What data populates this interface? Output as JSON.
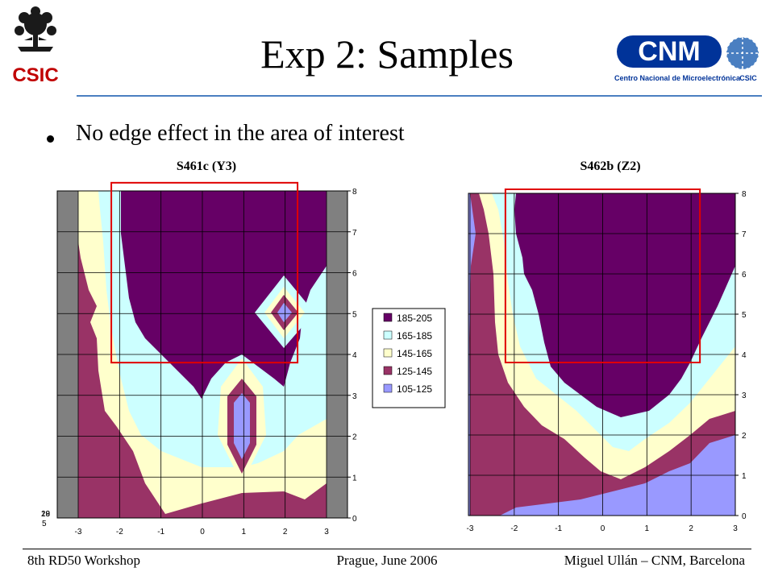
{
  "header": {
    "title": "Exp 2: Samples",
    "left_logo_text": "CSIC",
    "right_logo_text": "CNM",
    "right_logo_subtitle": "Centro Nacional de Microelectrónica",
    "right_logo_tag": "CSIC",
    "logo_red": "#c00000",
    "logo_blue": "#003399"
  },
  "bullets": [
    "No edge effect in the area of interest"
  ],
  "footer": {
    "left": "8th RD50 Workshop",
    "center": "Prague, June 2006",
    "right": "Miguel Ullán – CNM, Barcelona"
  },
  "legend": {
    "items": [
      {
        "label": "185-205",
        "color": "#660066"
      },
      {
        "label": "165-185",
        "color": "#ccffff"
      },
      {
        "label": "145-165",
        "color": "#ffffcc"
      },
      {
        "label": "125-145",
        "color": "#993366"
      },
      {
        "label": "105-125",
        "color": "#9999ff"
      }
    ]
  },
  "chart_data": [
    {
      "type": "heatmap",
      "title": "S461c (Y3)",
      "x_ticks": [
        "-3",
        "-2",
        "-1",
        "0",
        "1",
        "2",
        "3"
      ],
      "y_ticks": [
        "0",
        "1",
        "2",
        "3",
        "4",
        "5",
        "6",
        "7",
        "8"
      ],
      "xlim": [
        -3,
        3
      ],
      "ylim": [
        0,
        8
      ],
      "grid": true,
      "stray_left_labels": [
        "19",
        "28",
        "5"
      ],
      "side_bands": "gray",
      "region_of_interest": {
        "x": [
          -2.2,
          2.3
        ],
        "y": [
          3.8,
          8.2
        ],
        "color": "#e00000"
      }
    },
    {
      "type": "heatmap",
      "title": "S462b (Z2)",
      "x_ticks": [
        "-3",
        "-2",
        "-1",
        "0",
        "1",
        "2",
        "3"
      ],
      "y_ticks": [
        "0",
        "1",
        "2",
        "3",
        "4",
        "5",
        "6",
        "7",
        "8"
      ],
      "xlim": [
        -3,
        3
      ],
      "ylim": [
        0,
        8
      ],
      "grid": true,
      "side_bands": "none",
      "region_of_interest": {
        "x": [
          -2.2,
          2.2
        ],
        "y": [
          3.8,
          8.1
        ],
        "color": "#e00000"
      }
    }
  ]
}
